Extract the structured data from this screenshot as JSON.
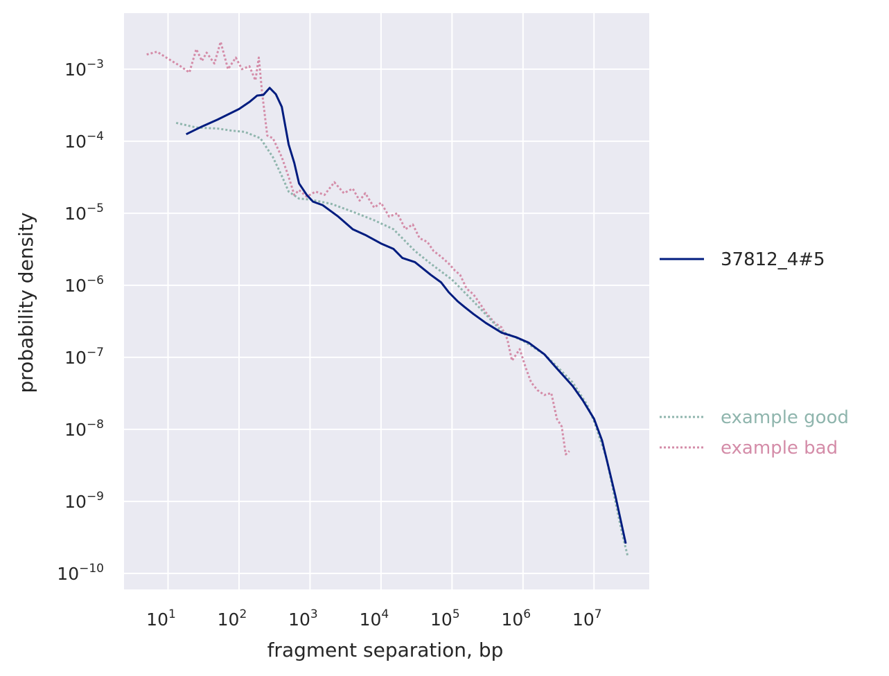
{
  "chart_data": {
    "type": "line",
    "xlabel": "fragment separation, bp",
    "ylabel": "probability density",
    "x_scale": "log",
    "y_scale": "log",
    "xlim": [
      2.4,
      60000000
    ],
    "ylim": [
      6e-11,
      0.006
    ],
    "grid": true,
    "x_ticks": [
      {
        "base": "10",
        "exp": "1",
        "value": 10
      },
      {
        "base": "10",
        "exp": "2",
        "value": 100
      },
      {
        "base": "10",
        "exp": "3",
        "value": 1000
      },
      {
        "base": "10",
        "exp": "4",
        "value": 10000
      },
      {
        "base": "10",
        "exp": "5",
        "value": 100000
      },
      {
        "base": "10",
        "exp": "6",
        "value": 1000000
      },
      {
        "base": "10",
        "exp": "7",
        "value": 10000000
      }
    ],
    "y_ticks": [
      {
        "base": "10",
        "exp": "−3",
        "value": 0.001
      },
      {
        "base": "10",
        "exp": "−4",
        "value": 0.0001
      },
      {
        "base": "10",
        "exp": "−5",
        "value": 1e-05
      },
      {
        "base": "10",
        "exp": "−6",
        "value": 1e-06
      },
      {
        "base": "10",
        "exp": "−7",
        "value": 1e-07
      },
      {
        "base": "10",
        "exp": "−8",
        "value": 1e-08
      },
      {
        "base": "10",
        "exp": "−9",
        "value": 1e-09
      },
      {
        "base": "10",
        "exp": "−10",
        "value": 1e-10
      }
    ],
    "legend": {
      "placement": "right",
      "entries": [
        {
          "label": "37812_4#5",
          "color": "#001c7f",
          "style": "solid"
        },
        {
          "label": "example good",
          "color": "#8fb5ad",
          "style": "dotted"
        },
        {
          "label": "example bad",
          "color": "#d48ca8",
          "style": "dotted"
        }
      ]
    },
    "series": [
      {
        "name": "37812_4#5",
        "color": "#001c7f",
        "style": "solid",
        "points": [
          [
            18,
            0.000125
          ],
          [
            30,
            0.00016
          ],
          [
            50,
            0.0002
          ],
          [
            100,
            0.00028
          ],
          [
            140,
            0.00035
          ],
          [
            180,
            0.00043
          ],
          [
            220,
            0.00044
          ],
          [
            270,
            0.00055
          ],
          [
            330,
            0.00045
          ],
          [
            400,
            0.0003
          ],
          [
            500,
            9e-05
          ],
          [
            600,
            5e-05
          ],
          [
            700,
            2.6e-05
          ],
          [
            900,
            1.8e-05
          ],
          [
            1100,
            1.45e-05
          ],
          [
            1500,
            1.3e-05
          ],
          [
            2500,
            9e-06
          ],
          [
            4000,
            6e-06
          ],
          [
            6000,
            5e-06
          ],
          [
            10000,
            3.8e-06
          ],
          [
            15000,
            3.2e-06
          ],
          [
            20000,
            2.4e-06
          ],
          [
            30000,
            2.1e-06
          ],
          [
            50000,
            1.4e-06
          ],
          [
            70000,
            1.1e-06
          ],
          [
            90000,
            8e-07
          ],
          [
            120000,
            6e-07
          ],
          [
            150000,
            5e-07
          ],
          [
            200000,
            4e-07
          ],
          [
            300000,
            3e-07
          ],
          [
            500000,
            2.2e-07
          ],
          [
            800000,
            1.9e-07
          ],
          [
            1200000,
            1.6e-07
          ],
          [
            2000000,
            1.1e-07
          ],
          [
            3000000,
            7e-08
          ],
          [
            5000000,
            4e-08
          ],
          [
            7000000,
            2.5e-08
          ],
          [
            10000000,
            1.4e-08
          ],
          [
            13000000,
            7e-09
          ],
          [
            16000000,
            3e-09
          ],
          [
            20000000,
            1.2e-09
          ],
          [
            28000000,
            2.6e-10
          ]
        ]
      },
      {
        "name": "example good",
        "color": "#8fb5ad",
        "style": "dotted",
        "points": [
          [
            13,
            0.00018
          ],
          [
            25,
            0.000155
          ],
          [
            50,
            0.00015
          ],
          [
            80,
            0.00014
          ],
          [
            120,
            0.000135
          ],
          [
            200,
            0.00011
          ],
          [
            300,
            6e-05
          ],
          [
            400,
            3.3e-05
          ],
          [
            500,
            2e-05
          ],
          [
            700,
            1.6e-05
          ],
          [
            1000,
            1.55e-05
          ],
          [
            2000,
            1.35e-05
          ],
          [
            4000,
            1.05e-05
          ],
          [
            8000,
            8e-06
          ],
          [
            15000,
            6e-06
          ],
          [
            30000,
            3e-06
          ],
          [
            50000,
            2e-06
          ],
          [
            100000,
            1.2e-06
          ],
          [
            200000,
            6e-07
          ],
          [
            500000,
            2.3e-07
          ],
          [
            1000000,
            1.7e-07
          ],
          [
            2000000,
            1.1e-07
          ],
          [
            3000000,
            7.5e-08
          ],
          [
            5000000,
            4.5e-08
          ],
          [
            8000000,
            2.2e-08
          ],
          [
            10000000,
            1.3e-08
          ],
          [
            15000000,
            4e-09
          ],
          [
            20000000,
            1e-09
          ],
          [
            25000000,
            3.5e-10
          ],
          [
            30000000,
            1.7e-10
          ]
        ]
      },
      {
        "name": "example bad",
        "color": "#d48ca8",
        "style": "dotted",
        "points": [
          [
            5,
            0.0016
          ],
          [
            7,
            0.00175
          ],
          [
            10,
            0.0014
          ],
          [
            15,
            0.0011
          ],
          [
            20,
            0.0009
          ],
          [
            25,
            0.0019
          ],
          [
            30,
            0.0013
          ],
          [
            35,
            0.0017
          ],
          [
            45,
            0.0012
          ],
          [
            55,
            0.0024
          ],
          [
            70,
            0.001
          ],
          [
            90,
            0.00145
          ],
          [
            110,
            0.001
          ],
          [
            140,
            0.0011
          ],
          [
            170,
            0.0007
          ],
          [
            190,
            0.00145
          ],
          [
            210,
            0.0005
          ],
          [
            250,
            0.00012
          ],
          [
            300,
            0.00011
          ],
          [
            400,
            6e-05
          ],
          [
            500,
            3.2e-05
          ],
          [
            600,
            1.8e-05
          ],
          [
            700,
            2.1e-05
          ],
          [
            900,
            1.7e-05
          ],
          [
            1200,
            2e-05
          ],
          [
            1600,
            1.8e-05
          ],
          [
            2200,
            2.7e-05
          ],
          [
            3000,
            1.9e-05
          ],
          [
            4000,
            2.2e-05
          ],
          [
            5000,
            1.5e-05
          ],
          [
            6000,
            1.9e-05
          ],
          [
            8000,
            1.2e-05
          ],
          [
            10000,
            1.4e-05
          ],
          [
            13000,
            9e-06
          ],
          [
            17000,
            1e-05
          ],
          [
            22000,
            6e-06
          ],
          [
            28000,
            7e-06
          ],
          [
            35000,
            4.5e-06
          ],
          [
            45000,
            4e-06
          ],
          [
            55000,
            3e-06
          ],
          [
            70000,
            2.5e-06
          ],
          [
            90000,
            2e-06
          ],
          [
            110000,
            1.6e-06
          ],
          [
            130000,
            1.4e-06
          ],
          [
            160000,
            9e-07
          ],
          [
            200000,
            7.5e-07
          ],
          [
            250000,
            5.5e-07
          ],
          [
            300000,
            4.2e-07
          ],
          [
            400000,
            3e-07
          ],
          [
            500000,
            2.6e-07
          ],
          [
            600000,
            1.8e-07
          ],
          [
            700000,
            9e-08
          ],
          [
            900000,
            1.3e-07
          ],
          [
            1100000,
            7e-08
          ],
          [
            1300000,
            4.5e-08
          ],
          [
            1600000,
            3.5e-08
          ],
          [
            2000000,
            3e-08
          ],
          [
            2500000,
            3.2e-08
          ],
          [
            3000000,
            1.4e-08
          ],
          [
            3500000,
            1.1e-08
          ],
          [
            4000000,
            4.5e-09
          ],
          [
            4500000,
            5e-09
          ]
        ]
      }
    ]
  }
}
